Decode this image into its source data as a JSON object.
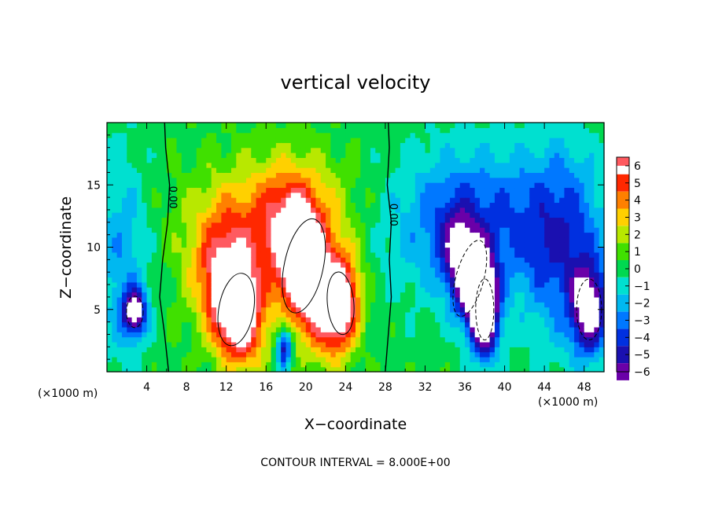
{
  "chart_data": {
    "type": "heatmap",
    "title": "vertical velocity",
    "xlabel": "X−coordinate",
    "ylabel": "Z−coordinate",
    "x_unit": "(×1000 m)",
    "note": "CONTOUR INTERVAL = 8.000E+00",
    "xlim": [
      0,
      50
    ],
    "ylim": [
      0,
      20
    ],
    "x_ticks": [
      4,
      8,
      12,
      16,
      20,
      24,
      28,
      32,
      36,
      40,
      44,
      48
    ],
    "y_ticks": [
      5,
      10,
      15
    ],
    "grid": false,
    "colorbar": {
      "levels": [
        -6,
        -5,
        -4,
        -3,
        -2,
        -1,
        0,
        1,
        2,
        3,
        4,
        5,
        6
      ],
      "colors": [
        "#6a00a8",
        "#1a10b0",
        "#0030e0",
        "#0078ff",
        "#00b8f0",
        "#00e0d0",
        "#00d850",
        "#40e000",
        "#b8e800",
        "#ffd000",
        "#ff8000",
        "#ff2800",
        "#ff5a60"
      ]
    },
    "contour_labels": [
      {
        "text": "0.00",
        "x": 6.3,
        "y": 14.0
      },
      {
        "text": "0.00",
        "x": 28.5,
        "y": 12.6
      }
    ],
    "zero_contours": [
      {
        "points": [
          [
            6.2,
            0
          ],
          [
            5.8,
            3
          ],
          [
            5.3,
            6
          ],
          [
            5.6,
            9
          ],
          [
            6.1,
            12
          ],
          [
            6.3,
            15
          ],
          [
            5.9,
            18
          ],
          [
            5.8,
            20
          ]
        ]
      },
      {
        "points": [
          [
            28.0,
            0
          ],
          [
            28.3,
            3
          ],
          [
            28.6,
            6
          ],
          [
            28.4,
            9
          ],
          [
            28.6,
            12
          ],
          [
            28.2,
            15
          ],
          [
            28.4,
            18
          ],
          [
            28.3,
            20
          ]
        ]
      }
    ],
    "features": [
      {
        "kind": "updraft",
        "cx": 13.0,
        "cy": 5.0,
        "rx": 2.5,
        "ry": 4.2,
        "rot": -10,
        "peak": 9
      },
      {
        "kind": "updraft",
        "cx": 19.8,
        "cy": 8.5,
        "rx": 2.8,
        "ry": 5.5,
        "rot": -12,
        "peak": 10
      },
      {
        "kind": "updraft",
        "cx": 23.5,
        "cy": 5.5,
        "rx": 1.9,
        "ry": 3.6,
        "rot": 5,
        "peak": 8
      },
      {
        "kind": "updraft",
        "cx": 18.0,
        "cy": 13.0,
        "rx": 7.5,
        "ry": 4.5,
        "rot": 0,
        "peak": 3
      },
      {
        "kind": "updraft",
        "cx": 12.0,
        "cy": 9.0,
        "rx": 4.0,
        "ry": 5.0,
        "rot": 0,
        "peak": 4
      },
      {
        "kind": "downdraft",
        "cx": 36.5,
        "cy": 7.5,
        "rx": 2.0,
        "ry": 4.5,
        "rot": -15,
        "peak": -8
      },
      {
        "kind": "downdraft",
        "cx": 38.0,
        "cy": 5.0,
        "rx": 1.3,
        "ry": 3.5,
        "rot": 0,
        "peak": -8
      },
      {
        "kind": "downdraft",
        "cx": 48.5,
        "cy": 5.0,
        "rx": 1.8,
        "ry": 3.5,
        "rot": 0,
        "peak": -7
      },
      {
        "kind": "downdraft",
        "cx": 2.8,
        "cy": 4.8,
        "rx": 1.2,
        "ry": 1.8,
        "rot": 0,
        "peak": -7
      },
      {
        "kind": "downdraft",
        "cx": 17.8,
        "cy": 2.0,
        "rx": 0.8,
        "ry": 1.6,
        "rot": 0,
        "peak": -6
      },
      {
        "kind": "downdraft",
        "cx": 37.0,
        "cy": 12.0,
        "rx": 9.0,
        "ry": 6.0,
        "rot": 0,
        "peak": -4
      },
      {
        "kind": "downdraft",
        "cx": 46.0,
        "cy": 10.0,
        "rx": 4.0,
        "ry": 8.0,
        "rot": 0,
        "peak": -3.5
      },
      {
        "kind": "downdraft",
        "cx": 1.5,
        "cy": 9.0,
        "rx": 2.5,
        "ry": 9.0,
        "rot": 0,
        "peak": -2.5
      }
    ]
  }
}
